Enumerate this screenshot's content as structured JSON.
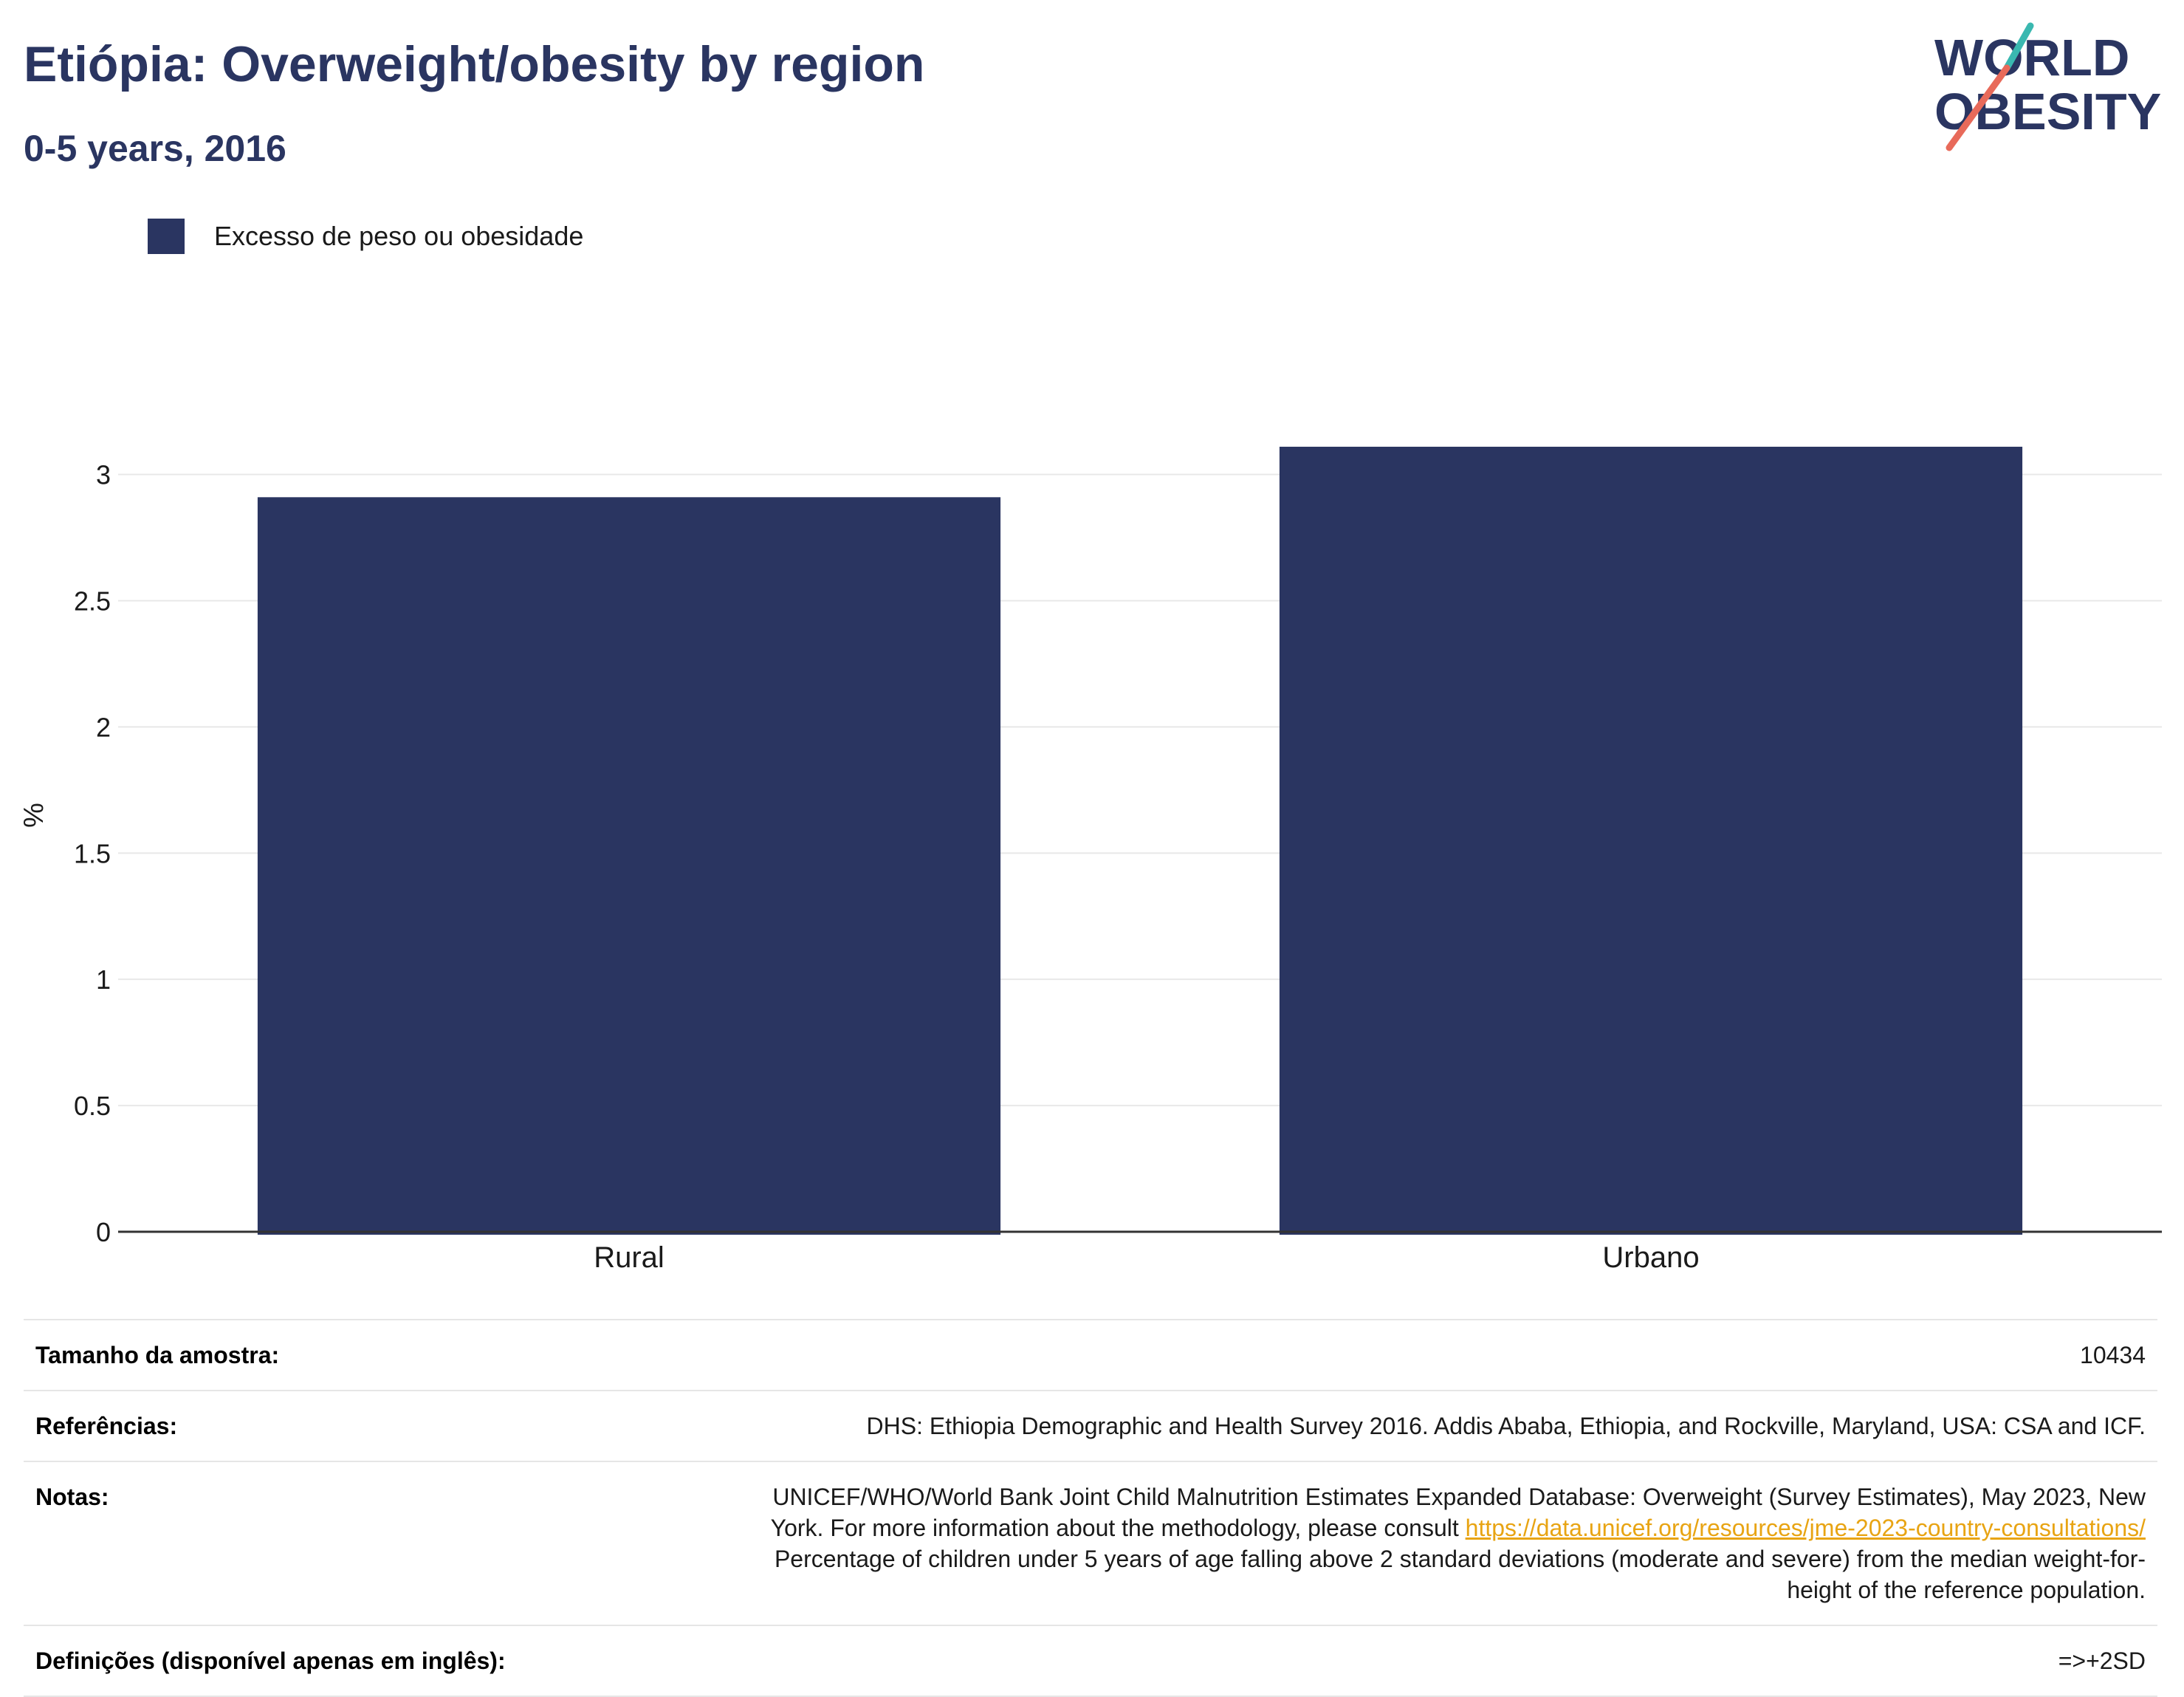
{
  "header": {
    "title": "Etiópia: Overweight/obesity by region",
    "subtitle": "0-5 years, 2016",
    "logo_line1": "WORLD",
    "logo_line2": "OBESITY"
  },
  "colors": {
    "bar": "#2a3561",
    "title": "#2a3561",
    "logo_teal": "#3ab8b0",
    "logo_coral": "#e86a5a",
    "link": "#e8a413"
  },
  "chart_data": {
    "type": "bar",
    "categories": [
      "Rural",
      "Urbano"
    ],
    "series": [
      {
        "name": "Excesso de peso ou obesidade",
        "values": [
          2.91,
          3.11
        ]
      }
    ],
    "title": "Etiópia: Overweight/obesity by region",
    "subtitle": "0-5 years, 2016",
    "xlabel": "",
    "ylabel": "%",
    "ylim": [
      0,
      3.3
    ],
    "yticks": [
      0,
      0.5,
      1,
      1.5,
      2,
      2.5,
      3
    ],
    "ytick_labels": [
      "0",
      "0.5",
      "1",
      "1.5",
      "2",
      "2.5",
      "3"
    ],
    "grid": true,
    "legend": "top-left"
  },
  "info": {
    "sample_label": "Tamanho da amostra:",
    "sample_value": "10434",
    "references_label": "Referências:",
    "references_value": "DHS: Ethiopia Demographic and Health Survey 2016. Addis Ababa, Ethiopia, and Rockville, Maryland, USA: CSA and ICF.",
    "notes_label": "Notas:",
    "notes_line1": "UNICEF/WHO/World Bank Joint Child Malnutrition Estimates Expanded Database: Overweight (Survey Estimates), May 2023, New",
    "notes_line2_prefix": "York. For more information about the methodology, please consult ",
    "notes_link": "https://data.unicef.org/resources/jme-2023-country-consultations/",
    "notes_line3": "Percentage of children under 5 years of age falling above 2 standard deviations (moderate and severe) from the median weight-for-",
    "notes_line4": "height of the reference population.",
    "definitions_label": "Definições (disponível apenas em inglês):",
    "definitions_value": "=>+2SD"
  }
}
